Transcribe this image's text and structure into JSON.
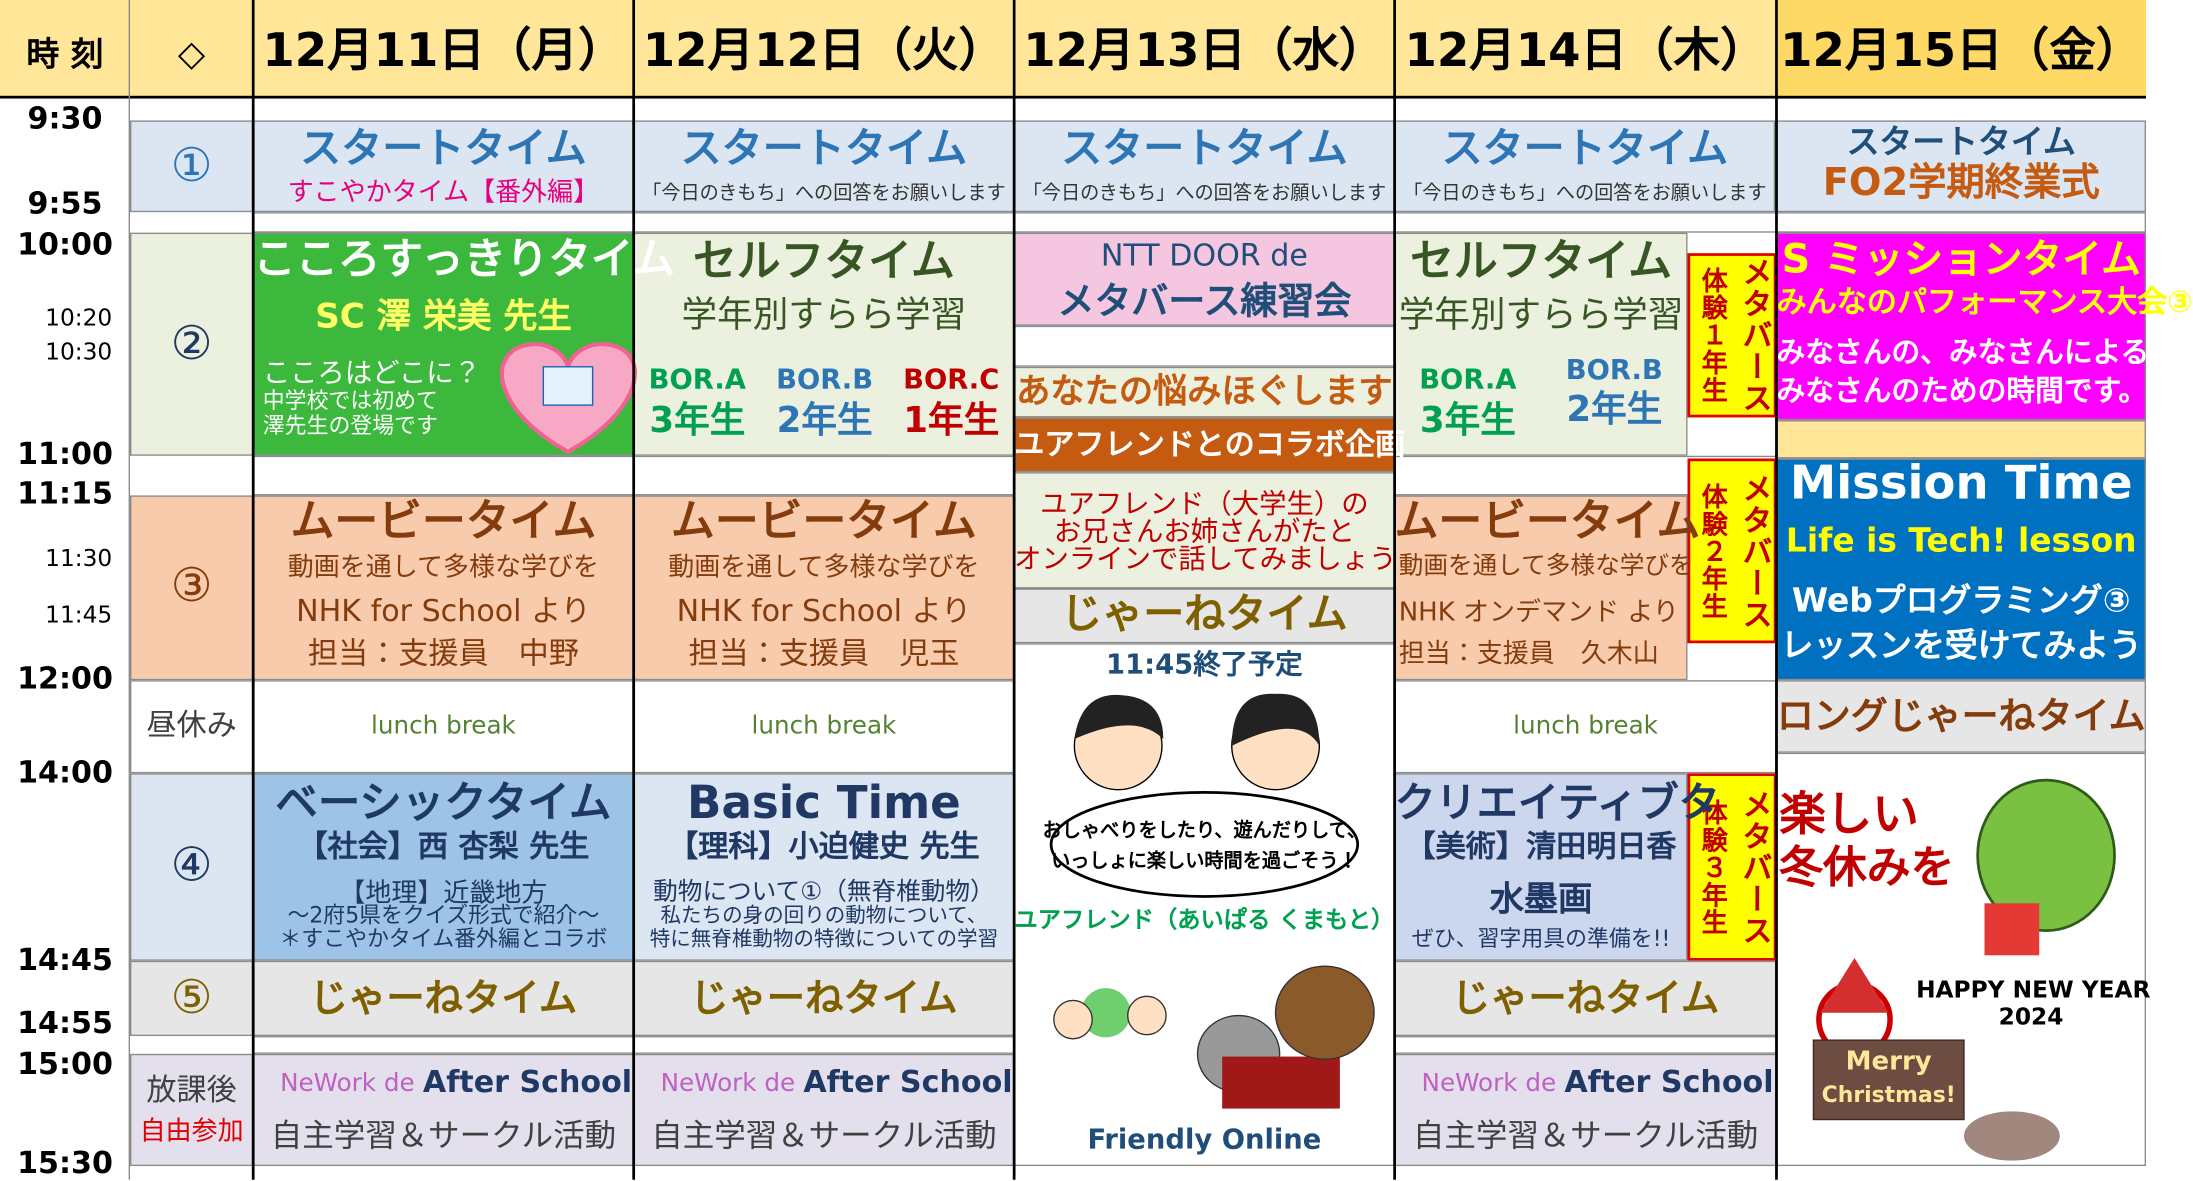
{
  "header": {
    "time_label": "時 刻",
    "marker": "◇",
    "days": [
      "12月11日（月）",
      "12月12日（火）",
      "12月13日（水）",
      "12月14日（木）",
      "12月15日（金）"
    ]
  },
  "times": [
    "9:30",
    "9:55",
    "10:00",
    "10:20",
    "10:30",
    "11:00",
    "11:15",
    "11:30",
    "11:45",
    "12:00",
    "14:00",
    "14:45",
    "14:55",
    "15:00",
    "15:30"
  ],
  "periods": [
    "①",
    "②",
    "③",
    "昼休み",
    "④",
    "⑤",
    "放課後",
    "自由参加"
  ],
  "cells": {
    "mon_start": [
      "スタートタイム",
      "すこやかタイム【番外編】"
    ],
    "tue_start": [
      "スタートタイム",
      "「今日のきもち」への回答をお願いします"
    ],
    "wed_start": [
      "スタートタイム",
      "「今日のきもち」への回答をお願いします"
    ],
    "thu_start": [
      "スタートタイム",
      "「今日のきもち」への回答をお願いします"
    ],
    "fri_start": [
      "スタートタイム",
      "FO2学期終業式"
    ],
    "mon_p2": [
      "こころすっきりタイム",
      "SC 澤 栄美 先生",
      "こころはどこに？",
      "中学校では初めて",
      "澤先生の登場です"
    ],
    "tue_p2": [
      "セルフタイム",
      "学年別すらら学習",
      "BOR.A",
      "3年生",
      "BOR.B",
      "2年生",
      "BOR.C",
      "1年生"
    ],
    "wed_p2a": [
      "NTT DOOR de",
      "メタバース練習会"
    ],
    "wed_p2b": [
      "あなたの悩みほぐします"
    ],
    "wed_p2c": [
      "ユアフレンドとのコラボ企画"
    ],
    "wed_p3a": [
      "ユアフレンド（大学生）の",
      "お兄さんお姉さんがたと",
      "オンラインで話してみましょう"
    ],
    "wed_p3b": [
      "じゃーねタイム"
    ],
    "wed_ill": [
      "11:45終了予定",
      "おしゃべりをしたり、遊んだりして、",
      "いっしょに楽しい時間を過ごそう！",
      "ユアフレンド（あいぱる くまもと）",
      "Friendly Online"
    ],
    "thu_p2": [
      "セルフタイム",
      "学年別すらら学習",
      "BOR.A",
      "3年生",
      "BOR.B",
      "2年生"
    ],
    "thu_m1": [
      "体験１年生",
      "メタバース"
    ],
    "thu_m2": [
      "体験２年生",
      "メタバース"
    ],
    "thu_m3": [
      "体験３年生",
      "メタバース"
    ],
    "fri_p2": [
      "S ミッションタイム",
      "みんなのパフォーマンス大会③",
      "みなさんの、みなさんによる、",
      "みなさんのための時間です。"
    ],
    "mon_p3": [
      "ムービータイム",
      "動画を通して多様な学びを",
      "NHK for School より",
      "担当：支援員　中野"
    ],
    "tue_p3": [
      "ムービータイム",
      "動画を通して多様な学びを",
      "NHK for School より",
      "担当：支援員　児玉"
    ],
    "thu_p3": [
      "ムービータイム",
      "動画を通して多様な学びを",
      "NHK オンデマンド より",
      "担当：支援員　久木山"
    ],
    "fri_p3": [
      "Mission Time",
      "Life is Tech! lesson",
      "Webプログラミング③",
      "レッスンを受けてみよう"
    ],
    "mon_lunch": [
      "lunch break"
    ],
    "tue_lunch": [
      "lunch break"
    ],
    "thu_lunch": [
      "lunch break"
    ],
    "fri_lunch": [
      "ロングじゃーねタイム"
    ],
    "mon_p4": [
      "ベーシックタイム",
      "【社会】西 杏梨 先生",
      "【地理】近畿地方",
      "～2府5県をクイズ形式で紹介～",
      "＊すこやかタイム番外編とコラボ"
    ],
    "tue_p4": [
      "Basic Time",
      "【理科】小迫健史 先生",
      "動物について①（無脊椎動物）",
      "私たちの身の回りの動物について、",
      "特に無脊椎動物の特徴についての学習"
    ],
    "thu_p4": [
      "クリエイティブタ",
      "【美術】清田明日香",
      "水墨画",
      "ぜひ、習字用具の準備を!!"
    ],
    "fri_ill": [
      "楽しい",
      "冬休みを",
      "HAPPY NEW YEAR",
      "2024",
      "Merry",
      "Christmas!"
    ],
    "mon_p5": [
      "じゃーねタイム"
    ],
    "tue_p5": [
      "じゃーねタイム"
    ],
    "thu_p5": [
      "じゃーねタイム"
    ],
    "mon_after": [
      "NeWork de",
      "After School",
      "自主学習＆サークル活動"
    ],
    "tue_after": [
      "NeWork de",
      "After School",
      "自主学習＆サークル活動"
    ],
    "thu_after": [
      "NeWork de",
      "After School",
      "自主学習＆サークル活動"
    ]
  }
}
